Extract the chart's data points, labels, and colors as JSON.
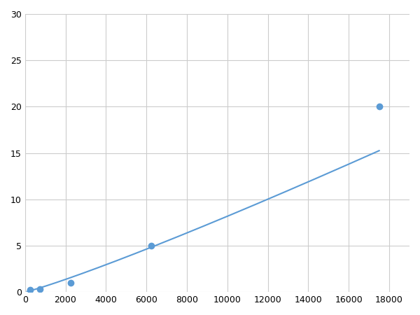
{
  "x_data": [
    250,
    750,
    2250,
    6250,
    17500
  ],
  "y_data": [
    0.2,
    0.35,
    1.0,
    5.0,
    20.0
  ],
  "line_color": "#5b9bd5",
  "marker_color": "#5b9bd5",
  "marker_size": 6,
  "linewidth": 1.5,
  "xlim": [
    0,
    19000
  ],
  "ylim": [
    0,
    30
  ],
  "xticks": [
    0,
    2000,
    4000,
    6000,
    8000,
    10000,
    12000,
    14000,
    16000,
    18000
  ],
  "yticks": [
    0,
    5,
    10,
    15,
    20,
    25,
    30
  ],
  "grid_color": "#cccccc",
  "background_color": "#ffffff",
  "tick_fontsize": 9
}
